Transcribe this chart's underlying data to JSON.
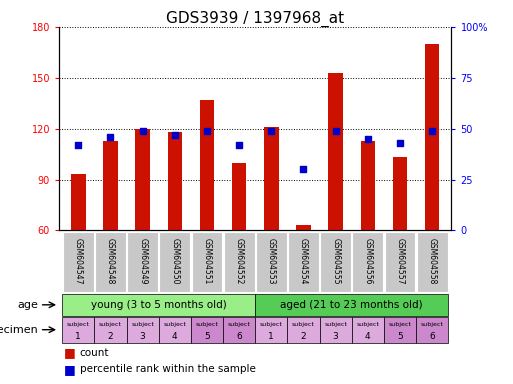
{
  "title": "GDS3939 / 1397968_at",
  "samples": [
    "GSM604547",
    "GSM604548",
    "GSM604549",
    "GSM604550",
    "GSM604551",
    "GSM604552",
    "GSM604553",
    "GSM604554",
    "GSM604555",
    "GSM604556",
    "GSM604557",
    "GSM604558"
  ],
  "count_values": [
    93,
    113,
    120,
    118,
    137,
    100,
    121,
    63,
    153,
    113,
    103,
    170
  ],
  "percentile_values": [
    42,
    46,
    49,
    47,
    49,
    42,
    49,
    30,
    49,
    45,
    43,
    49
  ],
  "ylim_left": [
    60,
    180
  ],
  "ylim_right": [
    0,
    100
  ],
  "yticks_left": [
    60,
    90,
    120,
    150,
    180
  ],
  "yticks_right": [
    0,
    25,
    50,
    75,
    100
  ],
  "bar_color": "#CC1100",
  "square_color": "#0000CC",
  "age_young_color": "#99EE88",
  "age_aged_color": "#55CC55",
  "specimen_colors": [
    "#DDAADD",
    "#DDAADD",
    "#DDAADD",
    "#DDAADD",
    "#CC88CC",
    "#CC88CC",
    "#DDAADD",
    "#DDAADD",
    "#DDAADD",
    "#DDAADD",
    "#CC88CC",
    "#CC88CC"
  ],
  "age_groups": [
    {
      "label": "young (3 to 5 months old)",
      "start": 0,
      "end": 6
    },
    {
      "label": "aged (21 to 23 months old)",
      "start": 6,
      "end": 12
    }
  ],
  "legend_count_label": "count",
  "legend_percentile_label": "percentile rank within the sample",
  "age_label": "age",
  "specimen_label": "specimen",
  "title_fontsize": 11,
  "tick_fontsize": 7,
  "bar_width": 0.45
}
